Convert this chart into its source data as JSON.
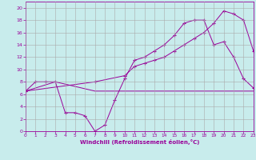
{
  "xlabel": "Windchill (Refroidissement éolien,°C)",
  "background_color": "#c8ecec",
  "line_color": "#990099",
  "grid_color": "#aaaaaa",
  "xlim": [
    0,
    23
  ],
  "ylim": [
    0,
    21
  ],
  "xticks": [
    0,
    1,
    2,
    3,
    4,
    5,
    6,
    7,
    8,
    9,
    10,
    11,
    12,
    13,
    14,
    15,
    16,
    17,
    18,
    19,
    20,
    21,
    22,
    23
  ],
  "yticks": [
    0,
    2,
    4,
    6,
    8,
    10,
    12,
    14,
    16,
    18,
    20
  ],
  "line1_x": [
    0,
    1,
    2,
    3,
    4,
    5,
    6,
    7,
    8,
    9,
    10,
    11,
    12,
    13,
    14,
    15,
    16,
    17,
    18,
    19,
    20,
    21,
    22,
    23
  ],
  "line1_y": [
    6.5,
    8,
    8,
    8,
    3,
    3,
    2.5,
    0,
    1,
    5,
    8.5,
    11.5,
    12,
    13,
    14,
    15.5,
    17.5,
    18,
    18,
    14,
    14.5,
    12,
    8.5,
    7
  ],
  "line2_x": [
    0,
    3,
    7,
    23
  ],
  "line2_y": [
    6.5,
    8,
    6.5,
    6.5
  ],
  "line3_x": [
    0,
    7,
    10,
    11,
    12,
    13,
    14,
    15,
    16,
    17,
    18,
    19,
    20,
    21,
    22,
    23
  ],
  "line3_y": [
    6.5,
    8,
    9,
    10.5,
    11,
    11.5,
    12,
    13,
    14,
    15,
    16,
    17.5,
    19.5,
    19,
    18,
    13
  ]
}
